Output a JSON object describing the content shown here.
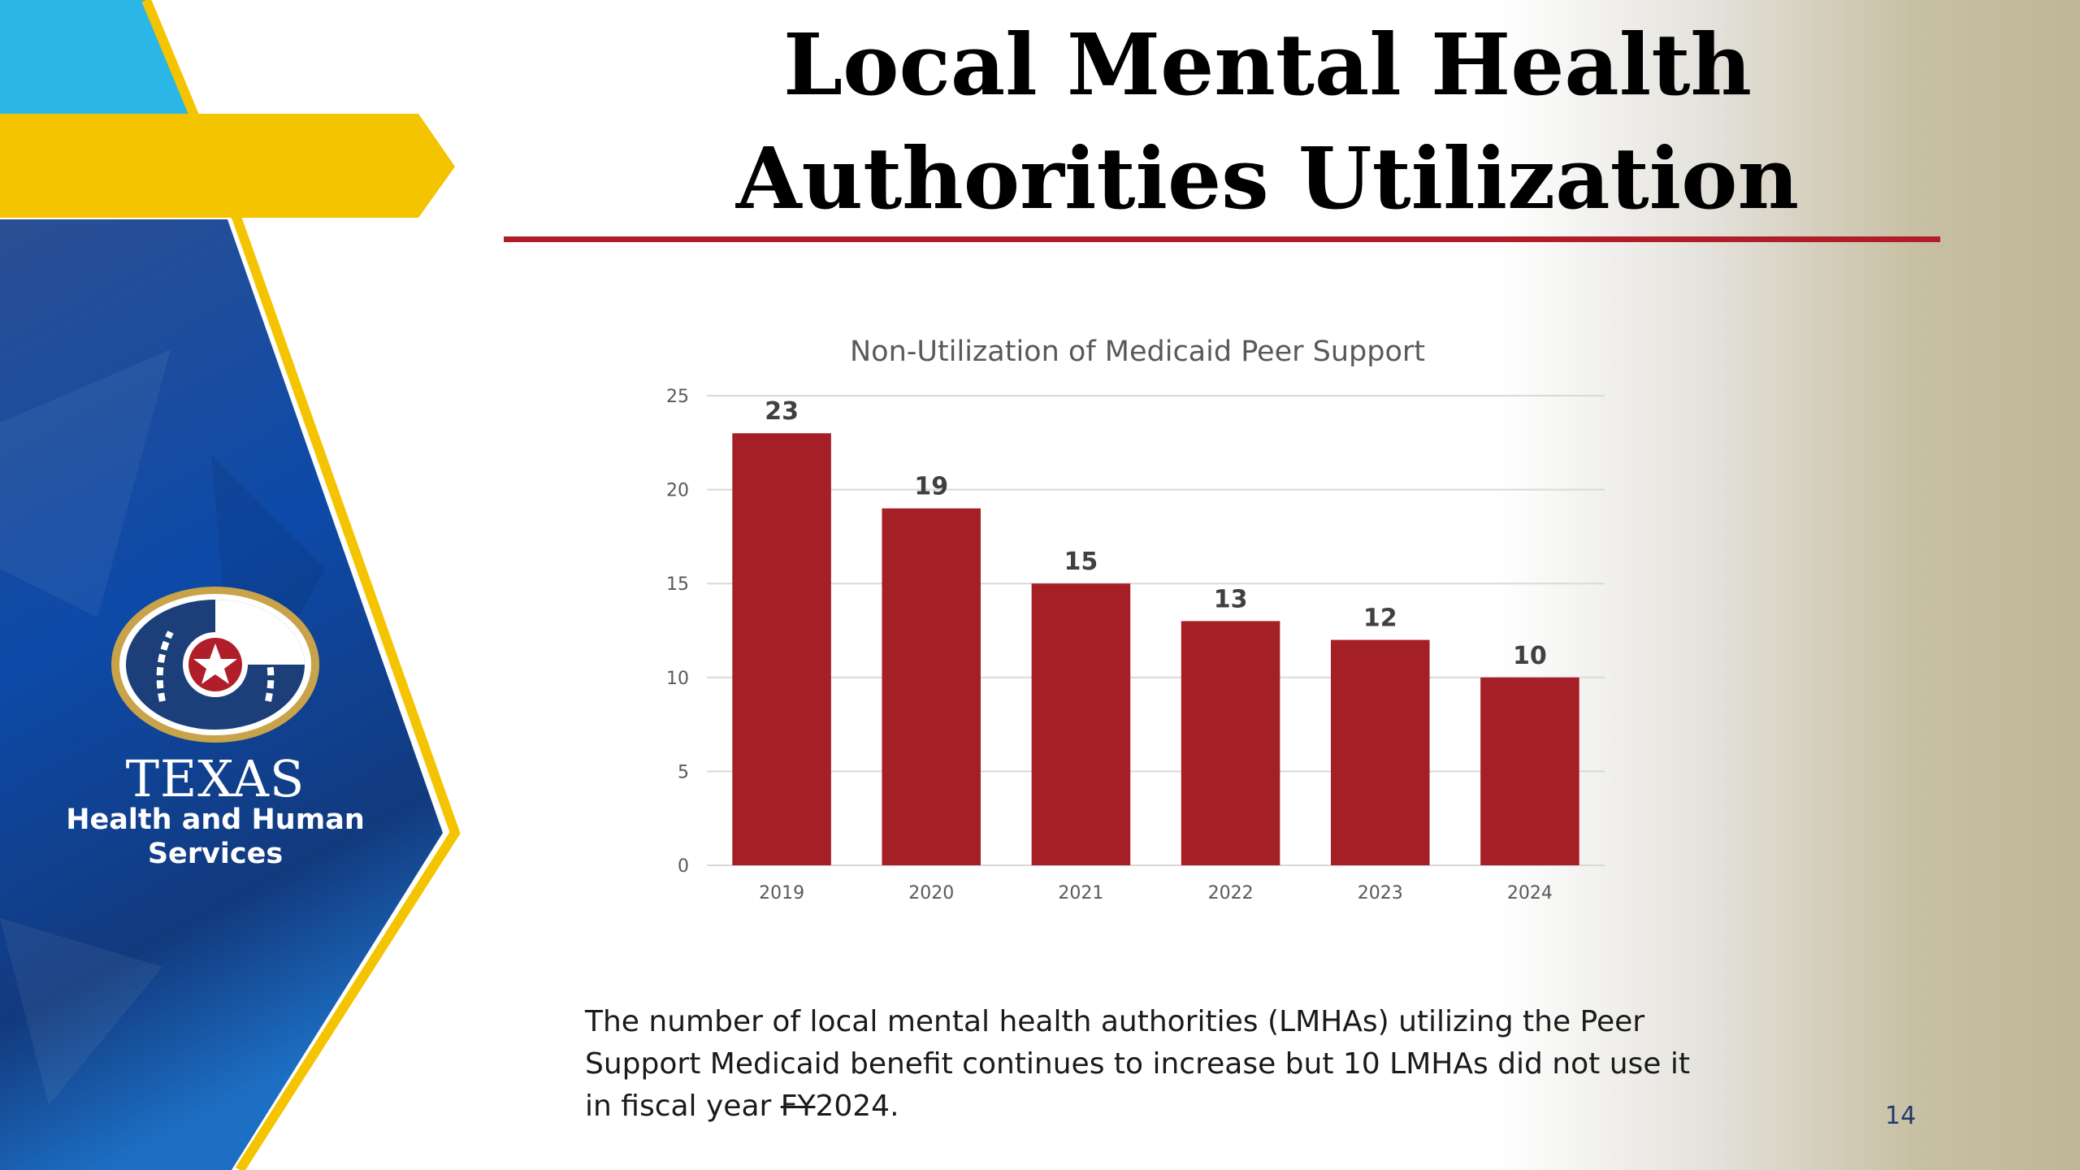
{
  "slide": {
    "title_line1": "Local Mental Health",
    "title_line2": "Authorities Utilization",
    "page_number": "14"
  },
  "brand": {
    "name": "TEXAS",
    "subtitle_line1": "Health and Human",
    "subtitle_line2": "Services"
  },
  "caption": {
    "line1": "The number of local mental health authorities (LMHAs) utilizing the Peer",
    "line2": "Support Medicaid benefit continues to increase but 10 LMHAs did not use it",
    "line3_prefix": "in fiscal year ",
    "line3_strike": "FY",
    "line3_suffix": "2024."
  },
  "colors": {
    "bar": "#a51f26",
    "title_rule": "#b01e2a",
    "gridline": "#d9d9d9",
    "axis_text": "#595959",
    "data_label": "#404040",
    "accent_yellow": "#f5c400",
    "accent_cyan": "#2bb6e8",
    "sidebar_blue": "#0f3f86"
  },
  "chart_data": {
    "type": "bar",
    "title": "Non-Utilization of Medicaid Peer Support",
    "categories": [
      "2019",
      "2020",
      "2021",
      "2022",
      "2023",
      "2024"
    ],
    "values": [
      23,
      19,
      15,
      13,
      12,
      10
    ],
    "yticks": [
      0,
      5,
      10,
      15,
      20,
      25
    ],
    "ylim": [
      0,
      25
    ],
    "xlabel": "",
    "ylabel": "",
    "grid": true,
    "legend": "none",
    "data_labels": true
  }
}
